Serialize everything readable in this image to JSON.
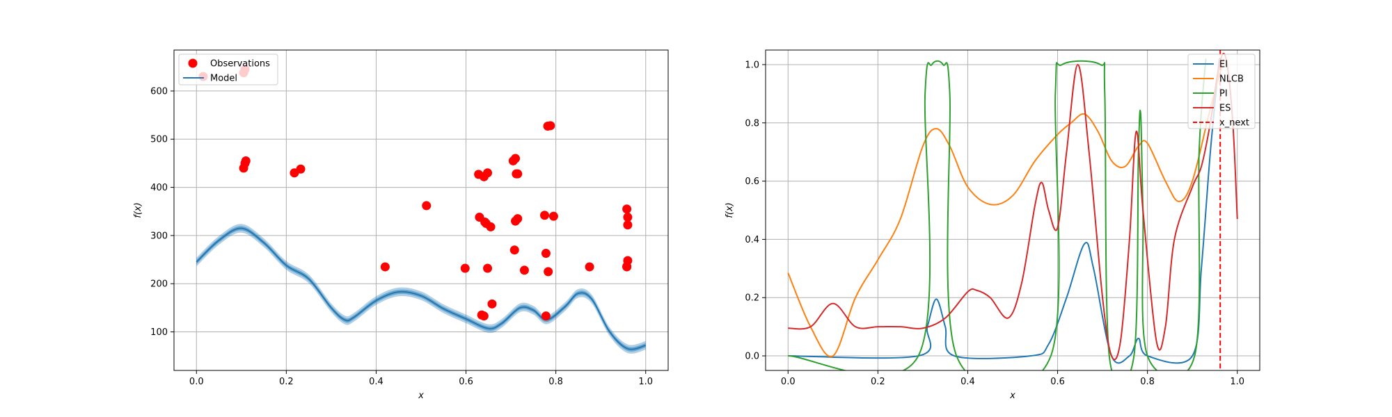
{
  "chart_data": [
    {
      "type": "scatter",
      "panel": "left",
      "xlabel": "x",
      "ylabel": "f(x)",
      "xlim": [
        -0.05,
        1.05
      ],
      "ylim": [
        20,
        685
      ],
      "xticks": [
        "0.0",
        "0.2",
        "0.4",
        "0.6",
        "0.8",
        "1.0"
      ],
      "yticks": [
        "100",
        "200",
        "300",
        "400",
        "500",
        "600"
      ],
      "grid": true,
      "legend_position": "upper-left",
      "legend": [
        "Observations",
        "Model"
      ],
      "colors": {
        "observations": "#ff0000",
        "model": "#1f77b4",
        "band": "#1f77b4"
      },
      "observations": {
        "name": "Observations",
        "x": [
          0.015,
          0.105,
          0.108,
          0.11,
          0.105,
          0.108,
          0.218,
          0.232,
          0.42,
          0.512,
          0.598,
          0.628,
          0.63,
          0.64,
          0.648,
          0.642,
          0.645,
          0.648,
          0.655,
          0.64,
          0.658,
          0.635,
          0.705,
          0.71,
          0.715,
          0.712,
          0.715,
          0.71,
          0.708,
          0.73,
          0.775,
          0.778,
          0.783,
          0.782,
          0.788,
          0.795,
          0.778,
          0.875,
          0.958,
          0.96,
          0.96,
          0.96,
          0.958,
          0.958
        ],
        "y": [
          630,
          638,
          645,
          455,
          440,
          450,
          430,
          438,
          235,
          362,
          232,
          427,
          338,
          422,
          430,
          328,
          325,
          232,
          318,
          133,
          158,
          135,
          455,
          460,
          428,
          428,
          335,
          330,
          270,
          228,
          342,
          263,
          225,
          527,
          528,
          340,
          133,
          235,
          355,
          338,
          322,
          248,
          235,
          236
        ]
      },
      "model": {
        "name": "Model",
        "x": [
          0.0,
          0.05,
          0.1,
          0.15,
          0.2,
          0.25,
          0.3,
          0.33,
          0.35,
          0.4,
          0.45,
          0.5,
          0.55,
          0.6,
          0.65,
          0.68,
          0.72,
          0.75,
          0.78,
          0.82,
          0.85,
          0.88,
          0.92,
          0.96,
          1.0
        ],
        "y": [
          245,
          290,
          315,
          285,
          238,
          210,
          150,
          125,
          130,
          165,
          183,
          175,
          148,
          127,
          107,
          118,
          150,
          145,
          125,
          152,
          180,
          168,
          100,
          65,
          72
        ],
        "band_halfwidth": 9
      }
    },
    {
      "type": "line",
      "panel": "right",
      "xlabel": "x",
      "ylabel": "f(x)",
      "xlim": [
        -0.05,
        1.05
      ],
      "ylim": [
        -0.05,
        1.05
      ],
      "xticks": [
        "0.0",
        "0.2",
        "0.4",
        "0.6",
        "0.8",
        "1.0"
      ],
      "yticks": [
        "0.0",
        "0.2",
        "0.4",
        "0.6",
        "0.8",
        "1.0"
      ],
      "grid": true,
      "legend_position": "upper-right",
      "legend": [
        "EI",
        "NLCB",
        "PI",
        "ES",
        "x_next"
      ],
      "series": [
        {
          "name": "EI",
          "color": "#1f77b4",
          "x": [
            0,
            0.29,
            0.31,
            0.33,
            0.35,
            0.37,
            0.54,
            0.58,
            0.62,
            0.66,
            0.68,
            0.72,
            0.76,
            0.78,
            0.8,
            0.9,
            0.92,
            0.94,
            0.96
          ],
          "y": [
            0,
            0,
            0.1,
            0.195,
            0.1,
            0,
            0,
            0.04,
            0.2,
            0.385,
            0.3,
            0,
            0,
            0.06,
            0,
            0,
            0.3,
            0.7,
            1.02
          ]
        },
        {
          "name": "NLCB",
          "color": "#ff7f0e",
          "x": [
            0,
            0.05,
            0.1,
            0.15,
            0.2,
            0.25,
            0.3,
            0.33,
            0.36,
            0.4,
            0.45,
            0.5,
            0.55,
            0.6,
            0.63,
            0.66,
            0.69,
            0.72,
            0.75,
            0.78,
            0.8,
            0.84,
            0.87,
            0.9,
            0.94,
            0.97
          ],
          "y": [
            0.285,
            0.1,
            0.0,
            0.2,
            0.33,
            0.47,
            0.72,
            0.78,
            0.72,
            0.58,
            0.52,
            0.55,
            0.67,
            0.76,
            0.8,
            0.83,
            0.77,
            0.67,
            0.65,
            0.72,
            0.73,
            0.6,
            0.53,
            0.6,
            0.85,
            1.02
          ]
        },
        {
          "name": "PI",
          "color": "#2ca02c",
          "x": [
            0,
            0.29,
            0.305,
            0.32,
            0.345,
            0.36,
            0.375,
            0.585,
            0.595,
            0.61,
            0.695,
            0.705,
            0.715,
            0.77,
            0.78,
            0.785,
            0.79,
            0.8,
            0.905,
            0.915,
            0.93
          ],
          "y": [
            0,
            0,
            0.9,
            1.0,
            1.0,
            0.9,
            0,
            0,
            0.9,
            1.0,
            1.0,
            0.9,
            0,
            0,
            0.7,
            0.83,
            0.5,
            0,
            0,
            0.7,
            1.02
          ]
        },
        {
          "name": "ES",
          "color": "#d62728",
          "x": [
            0,
            0.05,
            0.1,
            0.15,
            0.2,
            0.25,
            0.3,
            0.35,
            0.4,
            0.42,
            0.45,
            0.49,
            0.52,
            0.55,
            0.565,
            0.58,
            0.6,
            0.62,
            0.645,
            0.67,
            0.7,
            0.72,
            0.74,
            0.76,
            0.775,
            0.79,
            0.82,
            0.84,
            0.86,
            0.9,
            0.92,
            0.94,
            0.96,
            0.975,
            0.99,
            1.0
          ],
          "y": [
            0.095,
            0.1,
            0.18,
            0.1,
            0.1,
            0.1,
            0.095,
            0.13,
            0.22,
            0.225,
            0.2,
            0.13,
            0.25,
            0.52,
            0.595,
            0.5,
            0.44,
            0.7,
            1.0,
            0.7,
            0.2,
            0.0,
            0.05,
            0.4,
            0.77,
            0.5,
            0.05,
            0.1,
            0.4,
            0.58,
            0.65,
            0.8,
            1.0,
            1.02,
            0.8,
            0.47
          ]
        }
      ],
      "x_next": {
        "name": "x_next",
        "x": 0.962,
        "color": "#ff0000"
      }
    }
  ]
}
